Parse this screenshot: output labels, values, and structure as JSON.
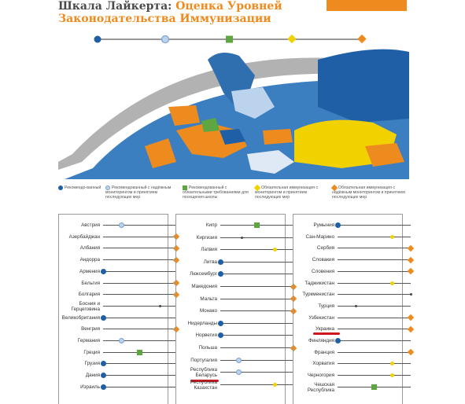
{
  "title": {
    "line1_dark": "Шкала Лайкерта: ",
    "line1_accent": "Оценка Уровней",
    "line2": "Законодательства Иммунизации"
  },
  "colors": {
    "lvl1": "#1f5fa6",
    "lvl2": "#bcd3ee",
    "lvl3": "#5da640",
    "lvl4": "#f2d100",
    "lvl5": "#ee8b1f",
    "highlight": "#d0151e"
  },
  "legend": [
    {
      "level": 1,
      "text": "Рекомендо-ванный"
    },
    {
      "level": 2,
      "text": "Рекомендованный с надёжным мониторингом и принятием последующих мер"
    },
    {
      "level": 3,
      "text": "Рекомендованный с обязательными требованиями для посещения школы"
    },
    {
      "level": 4,
      "text": "Обязательная иммунизация с мониторингом и принятием последующих мер"
    },
    {
      "level": 5,
      "text": "Обязательная иммунизация с надёжным мониторингом и принятием последующих мер"
    }
  ],
  "columns": [
    {
      "rows": [
        {
          "name": "Австрия",
          "level": 2
        },
        {
          "name": "Азербайджан",
          "level": 5
        },
        {
          "name": "Албания",
          "level": 5
        },
        {
          "name": "Андорра",
          "level": 5
        },
        {
          "name": "Армения",
          "level": 1
        },
        {
          "name": "Бельгия",
          "level": 5
        },
        {
          "name": "Болгария",
          "level": 5
        },
        {
          "name": "Босния и Герцеговина",
          "level": 6,
          "pos": 0.78,
          "two_line": true
        },
        {
          "name": "Великобритания",
          "level": 1
        },
        {
          "name": "Венгрия",
          "level": 5
        },
        {
          "name": "Германия",
          "level": 2
        },
        {
          "name": "Греция",
          "level": 3
        },
        {
          "name": "Грузия",
          "level": 1
        },
        {
          "name": "Дания",
          "level": 1
        },
        {
          "name": "Израиль",
          "level": 1
        }
      ]
    },
    {
      "rows": [
        {
          "name": "Кипр",
          "level": 3
        },
        {
          "name": "Киргизия",
          "level": 6,
          "pos": 0.3
        },
        {
          "name": "Латвия",
          "level": 4
        },
        {
          "name": "Литва",
          "level": 1
        },
        {
          "name": "Люксембург",
          "level": 1
        },
        {
          "name": "Македония",
          "level": 5
        },
        {
          "name": "Мальта",
          "level": 5
        },
        {
          "name": "Монако",
          "level": 5
        },
        {
          "name": "Нидерланды",
          "level": 1
        },
        {
          "name": "Норвегия",
          "level": 1
        },
        {
          "name": "Польша",
          "level": 5
        },
        {
          "name": "Португалия",
          "level": 2
        },
        {
          "name": "Республика Беларусь",
          "level": 2,
          "two_line": true,
          "highlight": true
        },
        {
          "name": "Республика Казахстан",
          "level": 4,
          "two_line": true
        }
      ]
    },
    {
      "rows": [
        {
          "name": "Румыния",
          "level": 1
        },
        {
          "name": "Сан-Марино",
          "level": 4
        },
        {
          "name": "Сербия",
          "level": 5
        },
        {
          "name": "Словакия",
          "level": 5
        },
        {
          "name": "Словения",
          "level": 5
        },
        {
          "name": "Таджикистан",
          "level": 4
        },
        {
          "name": "Туркменистан",
          "level": 6,
          "pos": 1.0
        },
        {
          "name": "Турция",
          "level": 6,
          "pos": 0.25
        },
        {
          "name": "Узбекистан",
          "level": 5
        },
        {
          "name": "Украина",
          "level": 5,
          "highlight": true
        },
        {
          "name": "Финляндия",
          "level": 1
        },
        {
          "name": "Франция",
          "level": 5
        },
        {
          "name": "Хорватия",
          "level": 4
        },
        {
          "name": "Черногория",
          "level": 4
        },
        {
          "name": "Чешская Республика",
          "level": 3,
          "two_line": true
        }
      ]
    }
  ]
}
